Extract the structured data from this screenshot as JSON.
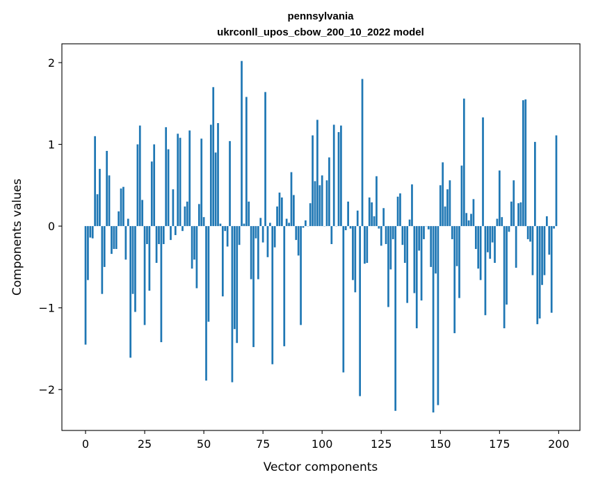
{
  "chart_data": {
    "type": "bar",
    "title": "pennsylvania",
    "subtitle": "ukrconll_upos_cbow_200_10_2022 model",
    "xlabel": "Vector components",
    "ylabel": "Components values",
    "xlim": [
      -10,
      209
    ],
    "ylim": [
      -2.5,
      2.23
    ],
    "xticks": [
      0,
      25,
      50,
      75,
      100,
      125,
      150,
      175,
      200
    ],
    "yticks": [
      -2,
      -1,
      0,
      1,
      2
    ],
    "ytick_labels": [
      "−2",
      "−1",
      "0",
      "1",
      "2"
    ],
    "grid": false,
    "bar_color": "#1f77b4",
    "x": [
      0,
      1,
      2,
      3,
      4,
      5,
      6,
      7,
      8,
      9,
      10,
      11,
      12,
      13,
      14,
      15,
      16,
      17,
      18,
      19,
      20,
      21,
      22,
      23,
      24,
      25,
      26,
      27,
      28,
      29,
      30,
      31,
      32,
      33,
      34,
      35,
      36,
      37,
      38,
      39,
      40,
      41,
      42,
      43,
      44,
      45,
      46,
      47,
      48,
      49,
      50,
      51,
      52,
      53,
      54,
      55,
      56,
      57,
      58,
      59,
      60,
      61,
      62,
      63,
      64,
      65,
      66,
      67,
      68,
      69,
      70,
      71,
      72,
      73,
      74,
      75,
      76,
      77,
      78,
      79,
      80,
      81,
      82,
      83,
      84,
      85,
      86,
      87,
      88,
      89,
      90,
      91,
      92,
      93,
      94,
      95,
      96,
      97,
      98,
      99,
      100,
      101,
      102,
      103,
      104,
      105,
      106,
      107,
      108,
      109,
      110,
      111,
      112,
      113,
      114,
      115,
      116,
      117,
      118,
      119,
      120,
      121,
      122,
      123,
      124,
      125,
      126,
      127,
      128,
      129,
      130,
      131,
      132,
      133,
      134,
      135,
      136,
      137,
      138,
      139,
      140,
      141,
      142,
      143,
      144,
      145,
      146,
      147,
      148,
      149,
      150,
      151,
      152,
      153,
      154,
      155,
      156,
      157,
      158,
      159,
      160,
      161,
      162,
      163,
      164,
      165,
      166,
      167,
      168,
      169,
      170,
      171,
      172,
      173,
      174,
      175,
      176,
      177,
      178,
      179,
      180,
      181,
      182,
      183,
      184,
      185,
      186,
      187,
      188,
      189,
      190,
      191,
      192,
      193,
      194,
      195,
      196,
      197,
      198,
      199
    ],
    "values": [
      -1.45,
      -0.66,
      -0.14,
      -0.15,
      1.1,
      0.39,
      0.7,
      -0.83,
      -0.5,
      0.92,
      0.62,
      -0.34,
      -0.28,
      -0.28,
      0.18,
      0.46,
      0.48,
      -0.41,
      0.09,
      -1.61,
      -0.83,
      -1.05,
      1.0,
      1.23,
      0.32,
      -1.21,
      -0.22,
      -0.79,
      0.79,
      1.0,
      -0.45,
      -0.22,
      -1.42,
      -0.22,
      1.21,
      0.94,
      -0.17,
      0.45,
      -0.11,
      1.13,
      1.08,
      -0.06,
      0.24,
      0.3,
      1.17,
      -0.52,
      -0.41,
      -0.76,
      0.27,
      1.07,
      0.11,
      -1.89,
      -1.17,
      1.24,
      1.7,
      0.9,
      1.26,
      0.03,
      -0.86,
      -0.06,
      -0.25,
      1.04,
      -1.91,
      -1.26,
      -1.43,
      -0.23,
      2.02,
      0.03,
      1.58,
      0.3,
      -0.65,
      -1.48,
      -0.15,
      -0.65,
      0.1,
      -0.2,
      1.64,
      -0.38,
      0.04,
      -1.69,
      -0.26,
      0.24,
      0.41,
      0.35,
      -1.47,
      0.09,
      0.04,
      0.66,
      0.38,
      -0.17,
      -0.36,
      -1.21,
      -0.02,
      0.07,
      0.0,
      0.28,
      1.11,
      0.55,
      1.3,
      0.5,
      0.62,
      0.0,
      0.56,
      0.84,
      -0.22,
      1.24,
      0.0,
      1.15,
      1.23,
      -1.79,
      -0.05,
      0.3,
      -0.03,
      -0.66,
      -0.81,
      0.19,
      -2.08,
      1.8,
      -0.46,
      -0.45,
      0.35,
      0.29,
      0.12,
      0.61,
      -0.03,
      -0.24,
      0.22,
      -0.22,
      -0.99,
      -0.53,
      -0.16,
      -2.26,
      0.36,
      0.4,
      -0.23,
      -0.45,
      -0.94,
      0.08,
      0.51,
      -0.82,
      -1.25,
      -0.3,
      -0.91,
      -0.16,
      0.0,
      -0.04,
      -0.5,
      -2.28,
      -0.58,
      -2.19,
      0.5,
      0.78,
      0.24,
      0.45,
      0.56,
      -0.16,
      -1.31,
      -0.49,
      -0.88,
      0.74,
      1.56,
      0.16,
      0.07,
      0.15,
      0.33,
      -0.28,
      -0.52,
      -0.66,
      1.33,
      -1.09,
      -0.32,
      -0.4,
      -0.2,
      -0.45,
      0.09,
      0.68,
      0.11,
      -1.25,
      -0.96,
      -0.07,
      0.3,
      0.56,
      -0.51,
      0.28,
      0.29,
      1.54,
      1.55,
      -0.16,
      -0.19,
      -0.6,
      1.03,
      -1.2,
      -1.13,
      -0.72,
      -0.6,
      0.12,
      -0.35,
      -1.06,
      -0.03,
      1.11
    ]
  }
}
